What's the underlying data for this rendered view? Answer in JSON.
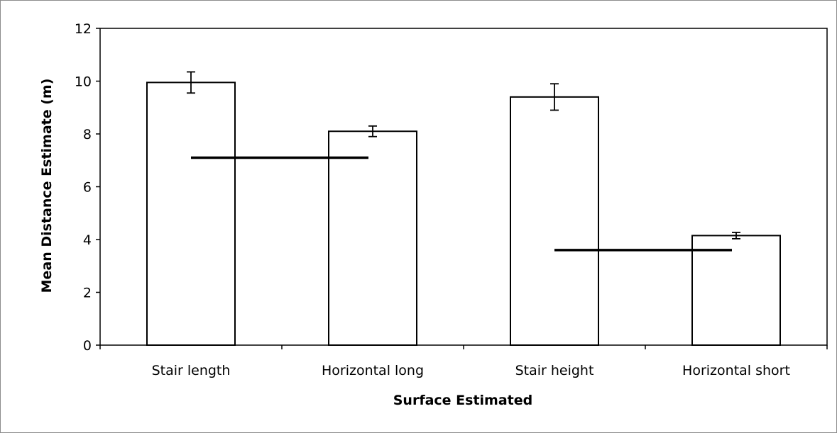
{
  "chart_data": {
    "type": "bar",
    "title": "",
    "xlabel": "Surface Estimated",
    "ylabel": "Mean Distance Estimate (m)",
    "ylim": [
      0,
      12
    ],
    "yticks": [
      0,
      2,
      4,
      6,
      8,
      10,
      12
    ],
    "categories": [
      "Stair length",
      "Horizontal long",
      "Stair height",
      "Horizontal short"
    ],
    "values": [
      9.95,
      8.1,
      9.4,
      4.15
    ],
    "errors": [
      0.4,
      0.2,
      0.5,
      0.12
    ],
    "reference_lines": [
      {
        "from_category": "Stair length",
        "to_category": "Horizontal long",
        "value": 7.1
      },
      {
        "from_category": "Stair height",
        "to_category": "Horizontal short",
        "value": 3.6
      }
    ],
    "grid": false,
    "legend": "none",
    "colors": {
      "bar_fill": "#ffffff",
      "bar_stroke": "#000000",
      "axis": "#000000"
    }
  }
}
